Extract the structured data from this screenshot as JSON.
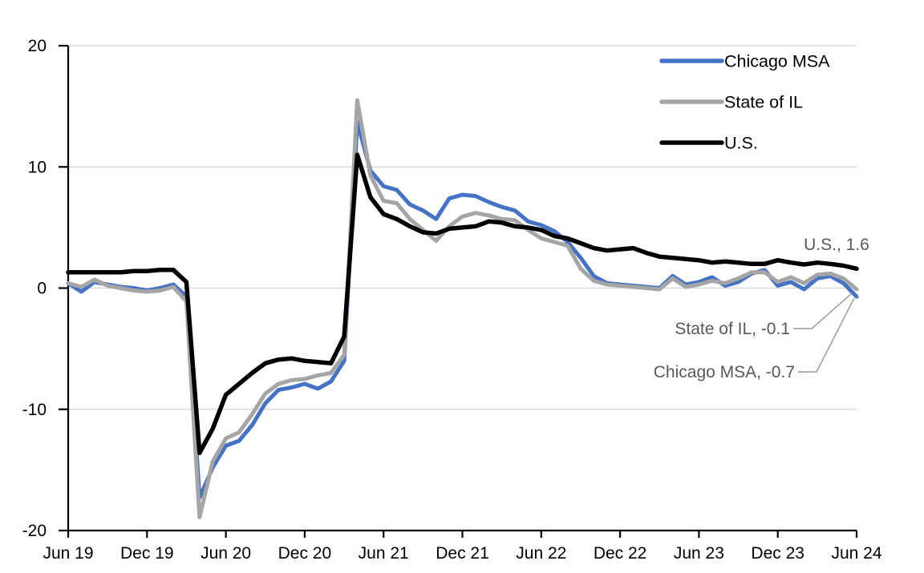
{
  "chart_data": {
    "type": "line",
    "title": "",
    "xlabel": "",
    "ylabel": "",
    "ylim": [
      -20,
      20
    ],
    "y_ticks": [
      20,
      10,
      0,
      -10,
      -20
    ],
    "x_tick_labels": [
      "Jun 19",
      "Dec 19",
      "Jun 20",
      "Dec 20",
      "Jun 21",
      "Dec 21",
      "Jun 22",
      "Dec 22",
      "Jun 23",
      "Dec 23",
      "Jun 24"
    ],
    "x_start_month": "Jun 2019",
    "x_end_month": "Jun 2024",
    "x_frequency": "monthly",
    "grid": "horizontal",
    "legend_position": "top-right",
    "colors": {
      "chicago_msa": "#4472C4",
      "state_of_il": "#A5A5A5",
      "us": "#000000",
      "gridline": "#D9D9D9",
      "axis": "#000000",
      "annotation_text": "#595959",
      "leader_line": "#A5A5A5",
      "tick_label": "#000000"
    },
    "series": [
      {
        "name": "Chicago MSA",
        "color": "#4472C4",
        "values": [
          0.4,
          -0.3,
          0.5,
          0.3,
          0.1,
          0.0,
          -0.2,
          0.0,
          0.3,
          -0.7,
          -17.3,
          -14.8,
          -13.0,
          -12.6,
          -11.3,
          -9.5,
          -8.4,
          -8.2,
          -7.9,
          -8.3,
          -7.7,
          -6.0,
          13.7,
          9.7,
          8.4,
          8.1,
          6.9,
          6.4,
          5.7,
          7.4,
          7.7,
          7.6,
          7.1,
          6.7,
          6.4,
          5.5,
          5.2,
          4.7,
          3.8,
          2.5,
          1.0,
          0.4,
          0.3,
          0.2,
          0.1,
          0.0,
          1.0,
          0.3,
          0.5,
          0.9,
          0.2,
          0.5,
          1.2,
          1.5,
          0.2,
          0.5,
          -0.1,
          0.8,
          1.0,
          0.4,
          -0.7
        ]
      },
      {
        "name": "State of IL",
        "color": "#A5A5A5",
        "values": [
          0.4,
          0.1,
          0.7,
          0.2,
          0.0,
          -0.2,
          -0.3,
          -0.2,
          0.1,
          -1.1,
          -18.9,
          -14.3,
          -12.4,
          -11.9,
          -10.4,
          -8.7,
          -7.9,
          -7.6,
          -7.5,
          -7.2,
          -7.0,
          -5.5,
          15.5,
          9.3,
          7.2,
          7.0,
          5.7,
          4.8,
          3.9,
          5.1,
          5.9,
          6.2,
          6.0,
          5.7,
          5.6,
          4.8,
          4.1,
          3.8,
          3.5,
          1.6,
          0.6,
          0.3,
          0.2,
          0.1,
          0.0,
          -0.1,
          0.8,
          0.1,
          0.3,
          0.6,
          0.4,
          0.8,
          1.3,
          1.3,
          0.5,
          0.9,
          0.4,
          1.1,
          1.2,
          0.8,
          -0.1
        ]
      },
      {
        "name": "U.S.",
        "color": "#000000",
        "values": [
          1.3,
          1.3,
          1.3,
          1.3,
          1.3,
          1.4,
          1.4,
          1.5,
          1.5,
          0.5,
          -13.6,
          -11.6,
          -8.8,
          -7.9,
          -7.0,
          -6.2,
          -5.9,
          -5.8,
          -6.0,
          -6.1,
          -6.2,
          -4.0,
          11.0,
          7.5,
          6.1,
          5.7,
          5.1,
          4.6,
          4.5,
          4.9,
          5.0,
          5.1,
          5.5,
          5.4,
          5.1,
          5.0,
          4.8,
          4.3,
          4.1,
          3.7,
          3.3,
          3.1,
          3.2,
          3.3,
          2.9,
          2.6,
          2.5,
          2.4,
          2.3,
          2.1,
          2.2,
          2.1,
          2.0,
          2.0,
          2.3,
          2.1,
          1.95,
          2.1,
          2.0,
          1.85,
          1.6
        ]
      }
    ],
    "legend_entries": [
      "Chicago MSA",
      "State of IL",
      "U.S."
    ],
    "annotations": [
      {
        "text": "U.S., 1.6",
        "series": "U.S.",
        "value": 1.6
      },
      {
        "text": "State of IL, -0.1",
        "series": "State of IL",
        "value": -0.1
      },
      {
        "text": "Chicago MSA, -0.7",
        "series": "Chicago MSA",
        "value": -0.7
      }
    ]
  }
}
